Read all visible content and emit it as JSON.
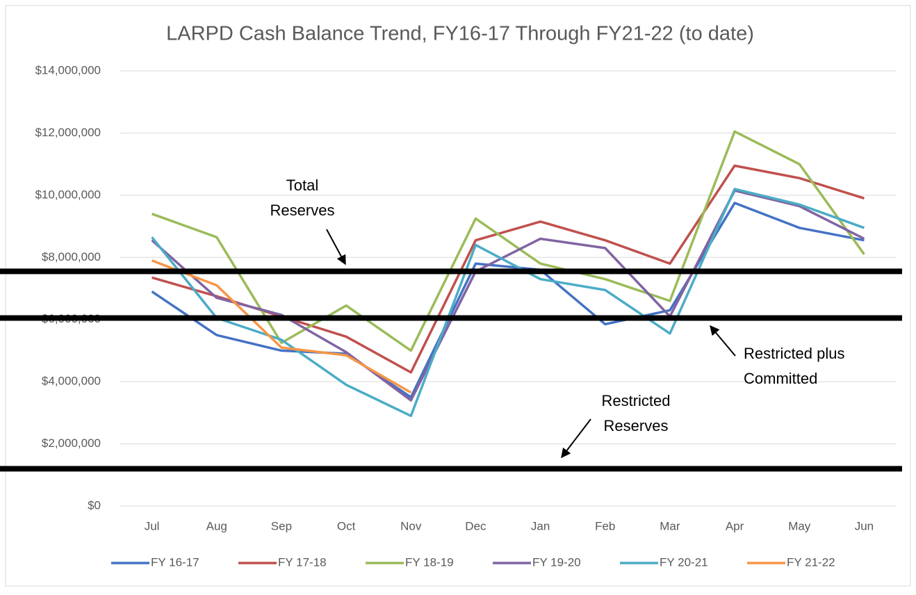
{
  "chart_data": {
    "type": "line",
    "title": "LARPD Cash Balance Trend, FY16-17 Through FY21-22 (to date)",
    "categories": [
      "Jul",
      "Aug",
      "Sep",
      "Oct",
      "Nov",
      "Dec",
      "Jan",
      "Feb",
      "Mar",
      "Apr",
      "May",
      "Jun"
    ],
    "series": [
      {
        "name": "FY 16-17",
        "color": "#4472c4",
        "values": [
          6900000,
          5500000,
          5000000,
          4900000,
          3500000,
          7800000,
          7600000,
          5850000,
          6300000,
          9750000,
          8950000,
          8550000
        ]
      },
      {
        "name": "FY 17-18",
        "color": "#c0504d",
        "values": [
          7350000,
          6750000,
          6100000,
          5450000,
          4300000,
          8550000,
          9150000,
          8550000,
          7800000,
          10950000,
          10550000,
          9900000
        ]
      },
      {
        "name": "FY 18-19",
        "color": "#9bbb59",
        "values": [
          9400000,
          8650000,
          5250000,
          6450000,
          5000000,
          9250000,
          7800000,
          7300000,
          6600000,
          12050000,
          11000000,
          8100000
        ]
      },
      {
        "name": "FY 19-20",
        "color": "#8064a2",
        "values": [
          8550000,
          6700000,
          6150000,
          4950000,
          3400000,
          7550000,
          8600000,
          8300000,
          6100000,
          10150000,
          9650000,
          8600000
        ]
      },
      {
        "name": "FY 20-21",
        "color": "#4bacc6",
        "values": [
          8650000,
          6050000,
          5350000,
          3900000,
          2900000,
          8400000,
          7300000,
          6950000,
          5550000,
          10200000,
          9700000,
          8950000
        ]
      },
      {
        "name": "FY 21-22",
        "color": "#f79646",
        "values": [
          7900000,
          7100000,
          5100000,
          4850000,
          3650000,
          null,
          null,
          null,
          null,
          null,
          null,
          null
        ]
      }
    ],
    "ylim": [
      0,
      14000000
    ],
    "yticks": [
      {
        "value": 0,
        "label": "$0"
      },
      {
        "value": 2000000,
        "label": "$2,000,000"
      },
      {
        "value": 4000000,
        "label": "$4,000,000"
      },
      {
        "value": 6000000,
        "label": "$6,000,000"
      },
      {
        "value": 8000000,
        "label": "$8,000,000"
      },
      {
        "value": 10000000,
        "label": "$10,000,000"
      },
      {
        "value": 12000000,
        "label": "$12,000,000"
      },
      {
        "value": 14000000,
        "label": "$14,000,000"
      }
    ],
    "grid": true,
    "legend": "bottom",
    "reference_lines": [
      {
        "value": 7550000,
        "label": [
          "Total",
          "Reserves"
        ]
      },
      {
        "value": 6050000,
        "label": [
          "Restricted plus",
          "Committed"
        ]
      },
      {
        "value": 1200000,
        "label": [
          "Restricted",
          "Reserves"
        ]
      }
    ]
  }
}
